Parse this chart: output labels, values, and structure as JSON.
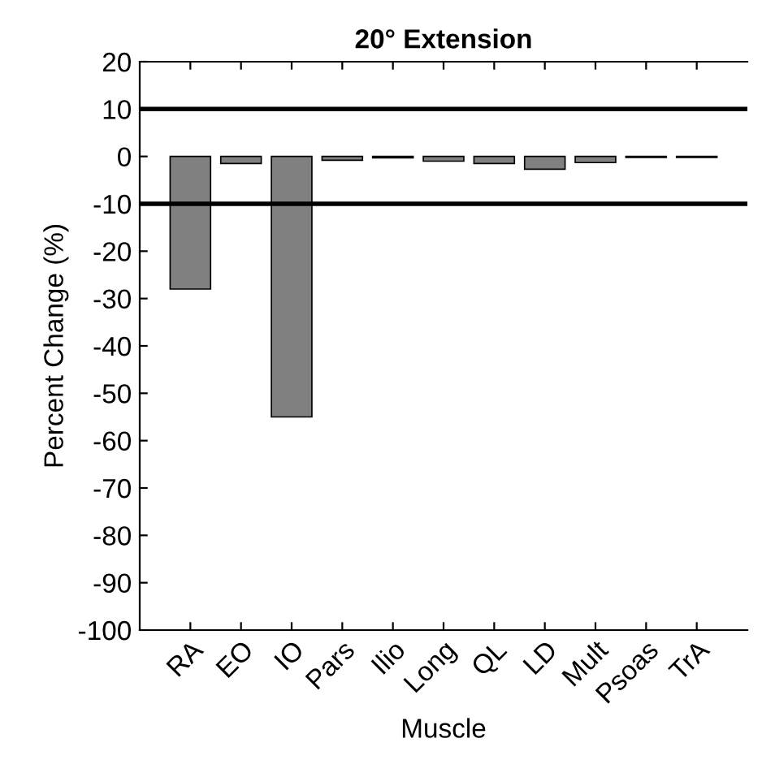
{
  "chart_data": {
    "type": "bar",
    "title": "20° Extension",
    "xlabel": "Muscle",
    "ylabel": "Percent Change (%)",
    "categories": [
      "RA",
      "EO",
      "IO",
      "Pars",
      "Ilio",
      "Long",
      "QL",
      "LD",
      "Mult",
      "Psoas",
      "TrA"
    ],
    "values": [
      -28,
      -1.5,
      -55,
      -0.8,
      -0.3,
      -1,
      -1.5,
      -2.7,
      -1.3,
      -0.2,
      -0.2
    ],
    "color": "#808080",
    "ylim": [
      -100,
      20
    ],
    "yticks": [
      -100,
      -90,
      -80,
      -70,
      -60,
      -50,
      -40,
      -30,
      -20,
      -10,
      0,
      10,
      20
    ],
    "ref_lines": [
      {
        "axis": "y",
        "value": 10,
        "color": "#000000"
      },
      {
        "axis": "y",
        "value": -10,
        "color": "#000000"
      }
    ],
    "grid": false,
    "legend": false
  }
}
